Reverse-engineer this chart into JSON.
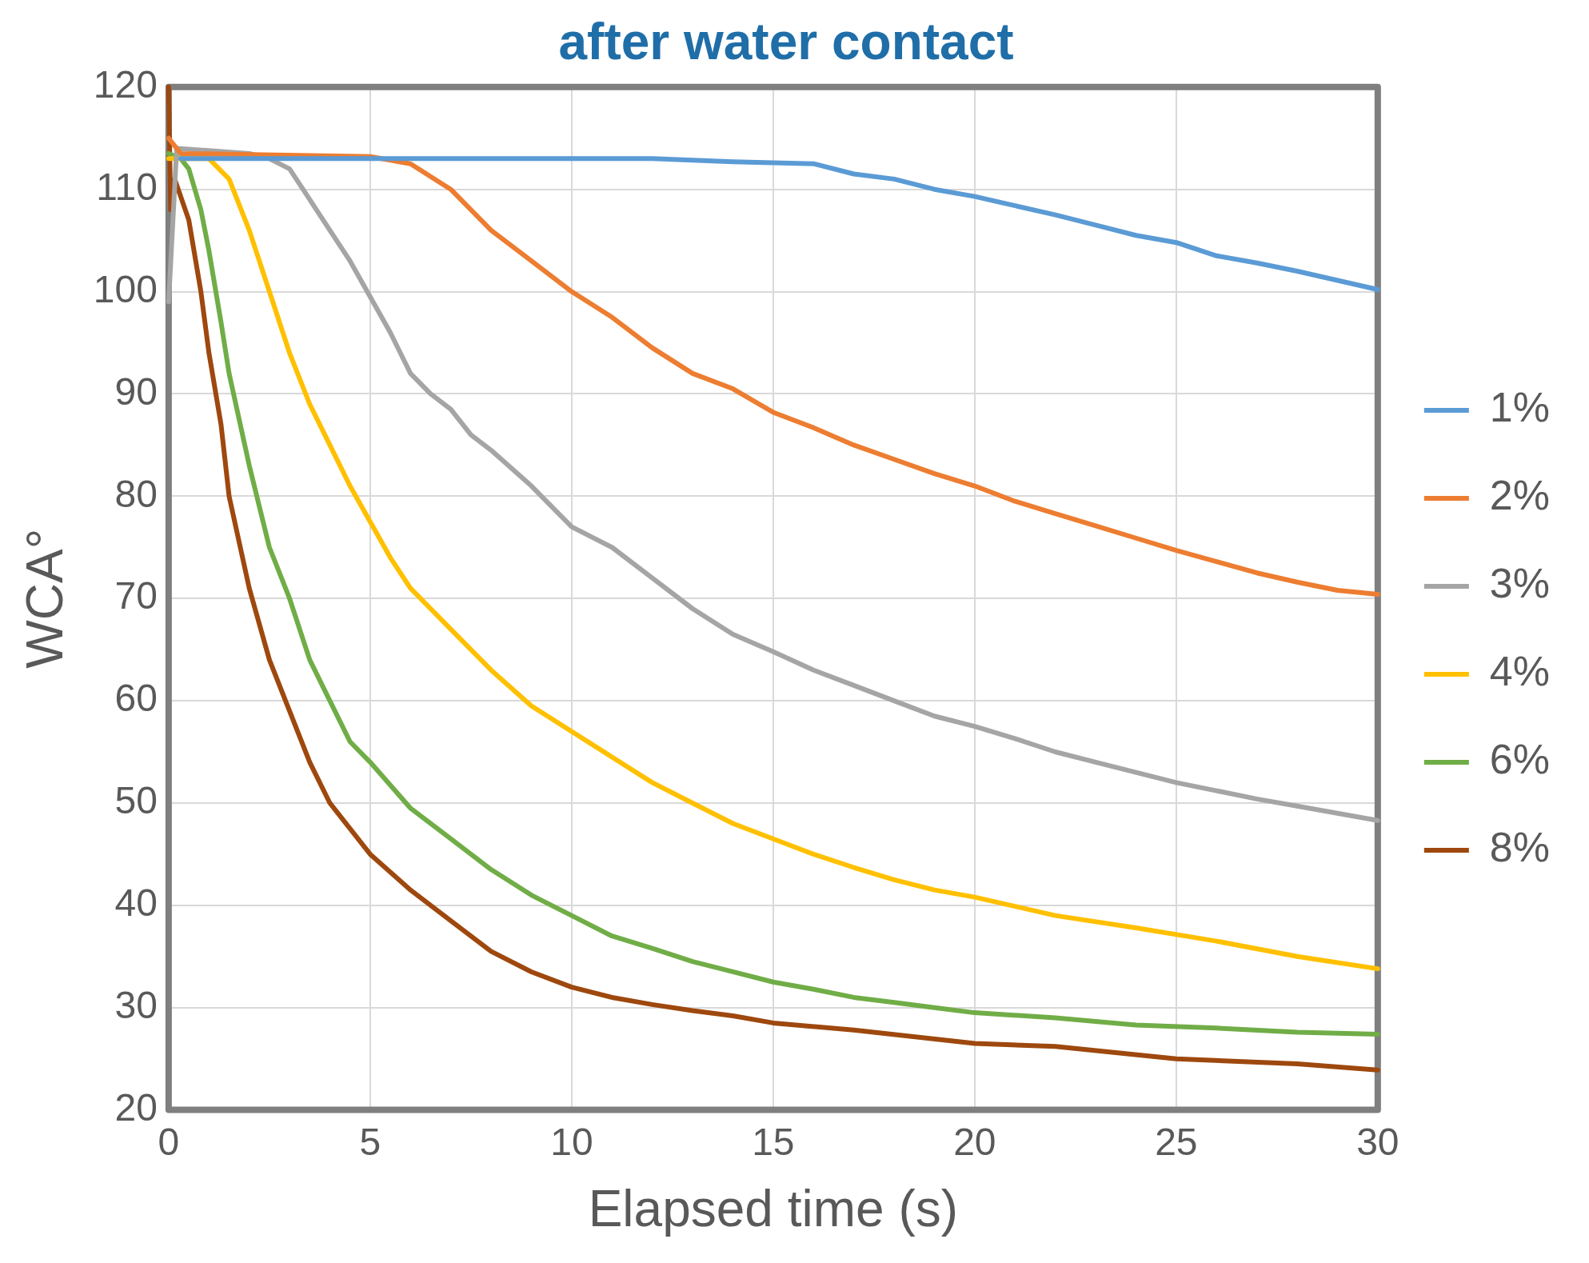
{
  "chart_data": {
    "type": "line",
    "title": "after water contact",
    "xlabel": "Elapsed time (s)",
    "ylabel": "WCA°",
    "xlim": [
      0,
      30
    ],
    "xticks": [
      0,
      5,
      10,
      15,
      20,
      25,
      30
    ],
    "ylim": [
      20,
      120
    ],
    "yticks": [
      20,
      30,
      40,
      50,
      60,
      70,
      80,
      90,
      100,
      110,
      120
    ],
    "grid": true,
    "legend": "right",
    "marker": "none",
    "line_style": "solid",
    "series": [
      {
        "name": "1%",
        "color": "#5b9bd5",
        "x": [
          0.3,
          2,
          5,
          8,
          10,
          12,
          14,
          16,
          17,
          18,
          19,
          20,
          22,
          23,
          24,
          25,
          26,
          27,
          28,
          30
        ],
        "values": [
          113,
          113,
          113,
          113,
          113,
          113,
          112.7,
          112.5,
          111.5,
          111,
          110,
          109.3,
          107.5,
          106.5,
          105.5,
          104.8,
          103.5,
          102.8,
          102,
          100.2
        ]
      },
      {
        "name": "2%",
        "color": "#ed7d31",
        "x": [
          0,
          0.3,
          5,
          6,
          7,
          8,
          9,
          10,
          11,
          12,
          13,
          14,
          15,
          16,
          17,
          18,
          19,
          20,
          21,
          22,
          23,
          24,
          25,
          26,
          27,
          28,
          29,
          30
        ],
        "values": [
          115,
          113.5,
          113.2,
          112.5,
          110,
          106,
          103,
          100,
          97.5,
          94.5,
          92,
          90.5,
          88.2,
          86.7,
          85,
          83.6,
          82.2,
          81,
          79.5,
          78.3,
          77.1,
          75.9,
          74.7,
          73.6,
          72.5,
          71.6,
          70.8,
          70.4
        ]
      },
      {
        "name": "3%",
        "color": "#a5a5a5",
        "x": [
          0,
          0.2,
          2,
          2.5,
          3,
          3.5,
          4,
          4.5,
          5,
          5.5,
          6,
          6.5,
          7,
          7.5,
          8,
          9,
          10,
          11,
          12,
          13,
          14,
          15,
          16,
          17,
          18,
          19,
          20,
          21,
          22,
          23,
          24,
          25,
          26,
          27,
          28,
          29,
          30
        ],
        "values": [
          99,
          114,
          113.5,
          113,
          112,
          109,
          106,
          103,
          99.5,
          96,
          92,
          90,
          88.5,
          86,
          84.5,
          81,
          77,
          75,
          72,
          69,
          66.5,
          64.8,
          63,
          61.5,
          60,
          58.5,
          57.5,
          56.3,
          55,
          54,
          53,
          52,
          51.2,
          50.4,
          49.7,
          49,
          48.3
        ]
      },
      {
        "name": "4%",
        "color": "#ffc000",
        "x": [
          0,
          1,
          1.5,
          2,
          2.5,
          3,
          3.5,
          4,
          4.5,
          5,
          5.5,
          6,
          7,
          8,
          9,
          10,
          11,
          12,
          13,
          14,
          15,
          16,
          17,
          18,
          19,
          20,
          22,
          24,
          26,
          28,
          30
        ],
        "values": [
          113,
          113,
          111,
          106,
          100,
          94,
          89,
          85,
          81,
          77.5,
          74,
          71,
          67,
          63,
          59.5,
          57,
          54.5,
          52,
          50,
          48,
          46.5,
          45,
          43.7,
          42.5,
          41.5,
          40.8,
          39,
          37.8,
          36.5,
          35,
          33.8
        ]
      },
      {
        "name": "6%",
        "color": "#70ad47",
        "x": [
          0,
          0.3,
          0.5,
          0.8,
          1,
          1.3,
          1.5,
          2,
          2.5,
          3,
          3.5,
          4,
          4.5,
          5,
          6,
          7,
          8,
          9,
          10,
          11,
          12,
          13,
          14,
          15,
          16,
          17,
          18,
          19,
          20,
          22,
          24,
          26,
          28,
          30
        ],
        "values": [
          113.5,
          113,
          112,
          108,
          104,
          97,
          92,
          83,
          75,
          70,
          64,
          60,
          56,
          54,
          49.5,
          46.5,
          43.5,
          41,
          39,
          37,
          35.8,
          34.5,
          33.5,
          32.5,
          31.8,
          31,
          30.5,
          30,
          29.5,
          29,
          28.3,
          28,
          27.6,
          27.4
        ]
      },
      {
        "name": "8%",
        "color": "#9e480e",
        "x": [
          0,
          0.05,
          0.15,
          0.5,
          0.8,
          1,
          1.3,
          1.5,
          2,
          2.5,
          3,
          3.5,
          4,
          5,
          6,
          7,
          8,
          9,
          10,
          11,
          12,
          13,
          14,
          15,
          17,
          20,
          22,
          25,
          28,
          30
        ],
        "values": [
          120,
          108,
          111,
          107,
          100,
          94,
          87,
          80,
          71,
          64,
          59,
          54,
          50,
          45,
          41.5,
          38.5,
          35.5,
          33.5,
          32,
          31,
          30.3,
          29.7,
          29.2,
          28.5,
          27.8,
          26.5,
          26.2,
          25,
          24.5,
          23.9
        ]
      }
    ]
  }
}
